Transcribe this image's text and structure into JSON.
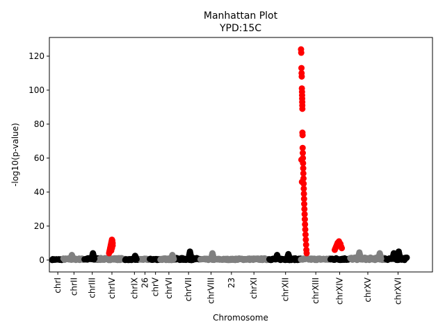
{
  "chart_data": {
    "type": "scatter",
    "title": "Manhattan Plot",
    "subtitle": "YPD:15C",
    "xlabel": "Chromosome",
    "ylabel": "-log10(p-value)",
    "ylim": [
      -7,
      131
    ],
    "xlim": [
      0,
      545
    ],
    "y_ticks": [
      0,
      20,
      40,
      60,
      80,
      100,
      120
    ],
    "x_ticks": [
      {
        "label": "chrI",
        "x": 12
      },
      {
        "label": "chrII",
        "x": 35
      },
      {
        "label": "chrIII",
        "x": 61
      },
      {
        "label": "chrIV",
        "x": 89
      },
      {
        "label": "chrIX",
        "x": 121
      },
      {
        "label": "26",
        "x": 136
      },
      {
        "label": "chrV",
        "x": 151
      },
      {
        "label": "chrVI",
        "x": 170
      },
      {
        "label": "chrVII",
        "x": 198
      },
      {
        "label": "chrVIII",
        "x": 230
      },
      {
        "label": "23",
        "x": 259
      },
      {
        "label": "chrXI",
        "x": 291
      },
      {
        "label": "chrXII",
        "x": 336
      },
      {
        "label": "chrXIII",
        "x": 379
      },
      {
        "label": "chrXIV",
        "x": 413
      },
      {
        "label": "chrXV",
        "x": 453
      },
      {
        "label": "chrXVI",
        "x": 496
      }
    ],
    "colors": {
      "black": "#000000",
      "gray": "#808080",
      "significant": "#ff0000"
    },
    "segments": [
      {
        "start": 4,
        "end": 20,
        "color": "black",
        "base": 0.6
      },
      {
        "start": 20,
        "end": 50,
        "color": "gray",
        "base": 1.0
      },
      {
        "start": 50,
        "end": 70,
        "color": "black",
        "base": 1.2
      },
      {
        "start": 70,
        "end": 108,
        "color": "gray",
        "base": 1.2
      },
      {
        "start": 108,
        "end": 127,
        "color": "black",
        "base": 0.6
      },
      {
        "start": 127,
        "end": 143,
        "color": "gray",
        "base": 0.8
      },
      {
        "start": 143,
        "end": 158,
        "color": "black",
        "base": 0.8
      },
      {
        "start": 158,
        "end": 180,
        "color": "gray",
        "base": 1.0
      },
      {
        "start": 180,
        "end": 215,
        "color": "black",
        "base": 1.2
      },
      {
        "start": 215,
        "end": 262,
        "color": "gray",
        "base": 0.8
      },
      {
        "start": 262,
        "end": 313,
        "color": "gray",
        "base": 1.0
      },
      {
        "start": 313,
        "end": 358,
        "color": "black",
        "base": 1.0
      },
      {
        "start": 358,
        "end": 400,
        "color": "gray",
        "base": 1.0
      },
      {
        "start": 400,
        "end": 428,
        "color": "black",
        "base": 1.2
      },
      {
        "start": 428,
        "end": 478,
        "color": "gray",
        "base": 1.5
      },
      {
        "start": 478,
        "end": 509,
        "color": "black",
        "base": 1.5
      }
    ],
    "bumps": [
      {
        "x": 32,
        "y": 3
      },
      {
        "x": 62,
        "y": 4
      },
      {
        "x": 122,
        "y": 2.5
      },
      {
        "x": 175,
        "y": 3
      },
      {
        "x": 200,
        "y": 5
      },
      {
        "x": 232,
        "y": 4
      },
      {
        "x": 324,
        "y": 3
      },
      {
        "x": 340,
        "y": 3.5
      },
      {
        "x": 441,
        "y": 4.5
      },
      {
        "x": 470,
        "y": 4
      },
      {
        "x": 490,
        "y": 4
      },
      {
        "x": 497,
        "y": 5
      }
    ],
    "significant_points": [
      {
        "x": 85,
        "y": 4
      },
      {
        "x": 85.5,
        "y": 5
      },
      {
        "x": 86,
        "y": 6
      },
      {
        "x": 86.5,
        "y": 7
      },
      {
        "x": 87,
        "y": 8
      },
      {
        "x": 87.5,
        "y": 9
      },
      {
        "x": 88,
        "y": 10
      },
      {
        "x": 88.5,
        "y": 11
      },
      {
        "x": 89,
        "y": 12
      },
      {
        "x": 89.5,
        "y": 11.5
      },
      {
        "x": 90,
        "y": 10
      },
      {
        "x": 90,
        "y": 8.5
      },
      {
        "x": 89,
        "y": 7
      },
      {
        "x": 88,
        "y": 5.5
      },
      {
        "x": 358.0,
        "y": 124
      },
      {
        "x": 358.3,
        "y": 122
      },
      {
        "x": 358.6,
        "y": 113
      },
      {
        "x": 358.8,
        "y": 110
      },
      {
        "x": 359.0,
        "y": 108
      },
      {
        "x": 359.2,
        "y": 101
      },
      {
        "x": 359.4,
        "y": 99
      },
      {
        "x": 359.5,
        "y": 97
      },
      {
        "x": 359.6,
        "y": 95
      },
      {
        "x": 359.7,
        "y": 93
      },
      {
        "x": 359.8,
        "y": 91
      },
      {
        "x": 359.9,
        "y": 89
      },
      {
        "x": 360.0,
        "y": 75
      },
      {
        "x": 360.2,
        "y": 73.5
      },
      {
        "x": 358.5,
        "y": 59
      },
      {
        "x": 359.3,
        "y": 46
      },
      {
        "x": 360.3,
        "y": 66
      },
      {
        "x": 360.5,
        "y": 63
      },
      {
        "x": 360.7,
        "y": 60
      },
      {
        "x": 360.9,
        "y": 57
      },
      {
        "x": 361.1,
        "y": 54
      },
      {
        "x": 361.3,
        "y": 51
      },
      {
        "x": 361.5,
        "y": 48
      },
      {
        "x": 361.7,
        "y": 45
      },
      {
        "x": 361.9,
        "y": 42
      },
      {
        "x": 362.1,
        "y": 39
      },
      {
        "x": 362.3,
        "y": 36
      },
      {
        "x": 362.5,
        "y": 33
      },
      {
        "x": 362.8,
        "y": 30
      },
      {
        "x": 363.1,
        "y": 27
      },
      {
        "x": 363.4,
        "y": 24
      },
      {
        "x": 363.7,
        "y": 21
      },
      {
        "x": 364.0,
        "y": 18
      },
      {
        "x": 364.4,
        "y": 15
      },
      {
        "x": 364.8,
        "y": 12
      },
      {
        "x": 365.2,
        "y": 9
      },
      {
        "x": 365.6,
        "y": 6
      },
      {
        "x": 366.0,
        "y": 4
      },
      {
        "x": 406,
        "y": 6
      },
      {
        "x": 407,
        "y": 7
      },
      {
        "x": 408,
        "y": 8
      },
      {
        "x": 409,
        "y": 9
      },
      {
        "x": 410,
        "y": 10
      },
      {
        "x": 411,
        "y": 10.5
      },
      {
        "x": 412,
        "y": 11
      },
      {
        "x": 413,
        "y": 10
      },
      {
        "x": 414,
        "y": 9.5
      },
      {
        "x": 415,
        "y": 8
      },
      {
        "x": 416,
        "y": 7
      }
    ]
  }
}
